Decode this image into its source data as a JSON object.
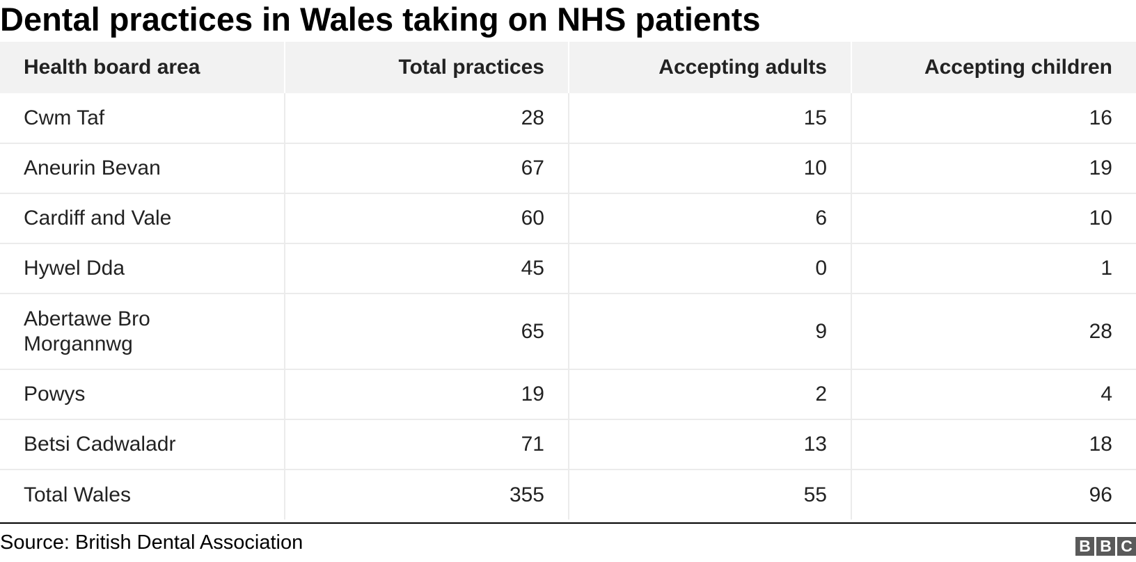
{
  "title": "Dental practices in Wales taking on NHS patients",
  "source": "Source: British Dental Association",
  "logo": {
    "letters": [
      "B",
      "B",
      "C"
    ],
    "color": "#5a5a5a"
  },
  "chart_data": {
    "type": "table",
    "title": "Dental practices in Wales taking on NHS patients",
    "columns": [
      "Health board area",
      "Total practices",
      "Accepting adults",
      "Accepting children"
    ],
    "rows": [
      [
        "Cwm Taf",
        "28",
        "15",
        "16"
      ],
      [
        "Aneurin Bevan",
        "67",
        "10",
        "19"
      ],
      [
        "Cardiff and Vale",
        "60",
        "6",
        "10"
      ],
      [
        "Hywel Dda",
        "45",
        "0",
        "1"
      ],
      [
        "Abertawe Bro Morgannwg",
        "65",
        "9",
        "28"
      ],
      [
        "Powys",
        "19",
        "2",
        "4"
      ],
      [
        "Betsi Cadwaladr",
        "71",
        "13",
        "18"
      ],
      [
        "Total Wales",
        "355",
        "55",
        "96"
      ]
    ],
    "header_background": "#f2f2f2",
    "grid_color": "#ebebeb"
  }
}
